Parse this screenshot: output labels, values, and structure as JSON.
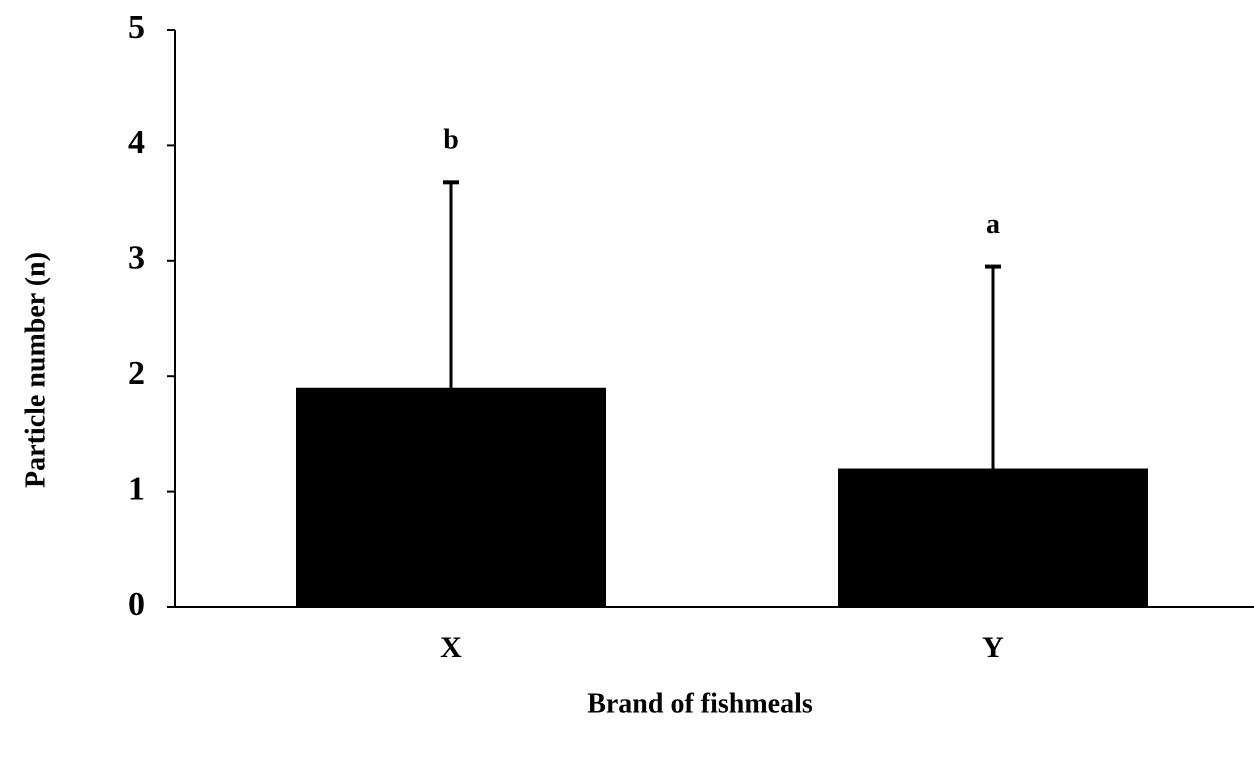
{
  "chart_data": {
    "type": "bar",
    "xlabel": "Brand of fishmeals",
    "ylabel": "Particle number (n)",
    "categories": [
      "X",
      "Y"
    ],
    "values": [
      1.9,
      1.2
    ],
    "errors": [
      1.78,
      1.75
    ],
    "annotations": [
      "b",
      "a"
    ],
    "color": "#000000",
    "ylim": [
      0,
      5
    ],
    "yticks": [
      0,
      1,
      2,
      3,
      4,
      5
    ],
    "grid": false
  }
}
